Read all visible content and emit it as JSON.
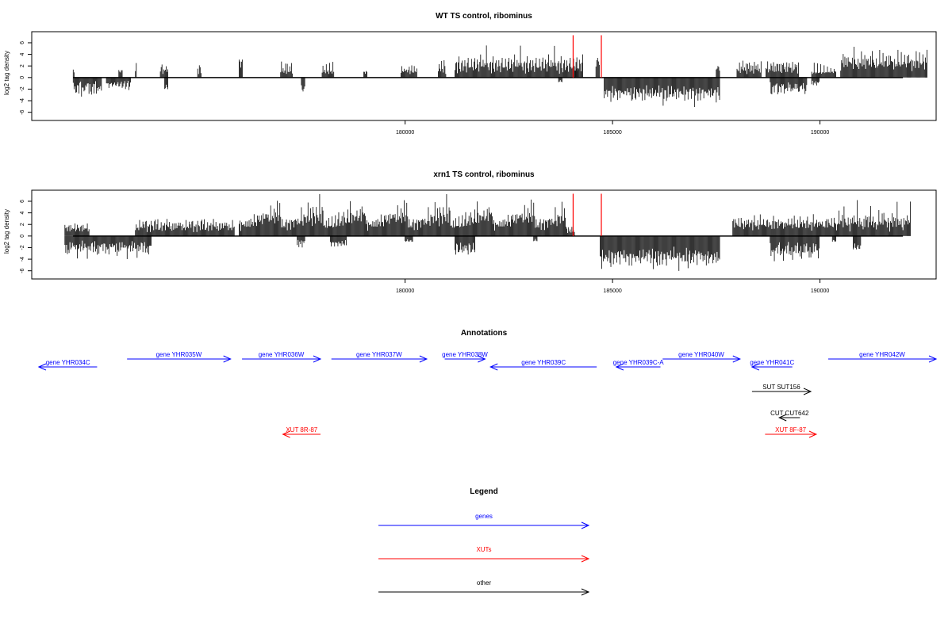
{
  "colors": {
    "axis": "#000000",
    "bars": "#000000",
    "highlight": "#ff0000",
    "genes": "#0000ff",
    "xuts": "#ff0000",
    "other": "#000000"
  },
  "chart_data": [
    {
      "type": "bar",
      "title": "WT TS control, ribominus",
      "ylabel": "log2 tag density",
      "xlim": [
        171000,
        192800
      ],
      "ylim": [
        -7,
        7.5
      ],
      "xticks": [
        180000,
        185000,
        190000
      ],
      "yticks": [
        -6,
        -4,
        -2,
        0,
        2,
        4,
        6
      ],
      "highlight_positions": [
        184050,
        184730
      ],
      "highlight_height": 7.3,
      "plus_strand": {
        "step": 20,
        "segments": [
          {
            "start": 172000,
            "end": 172050,
            "values": [
              1.5
            ]
          },
          {
            "start": 173100,
            "end": 173200,
            "values": [
              1.3
            ]
          },
          {
            "start": 173500,
            "end": 173550,
            "values": [
              1.3,
              2.5
            ]
          },
          {
            "start": 174100,
            "end": 174300,
            "values": [
              1.2,
              1.8,
              2.7,
              1.0,
              1.5
            ]
          },
          {
            "start": 175000,
            "end": 175100,
            "values": [
              1.8,
              1.0,
              2.3
            ]
          },
          {
            "start": 176000,
            "end": 176100,
            "values": [
              3.1
            ]
          },
          {
            "start": 177000,
            "end": 177300,
            "values": [
              1.2,
              2.8,
              1.1,
              2.6,
              1.0
            ]
          },
          {
            "start": 178000,
            "end": 178300,
            "values": [
              1.1,
              2.9,
              1.0,
              1.4
            ]
          },
          {
            "start": 179000,
            "end": 179100,
            "values": [
              1.0,
              1.2
            ]
          },
          {
            "start": 179900,
            "end": 180300,
            "values": [
              1.3,
              2.1,
              1.1
            ]
          },
          {
            "start": 180800,
            "end": 181000,
            "values": [
              1.1,
              3.0,
              2.2
            ]
          },
          {
            "start": 181200,
            "end": 184300,
            "values": [
              1.5,
              2.5,
              3.2,
              1.2,
              2.8,
              3.7,
              2.0,
              1.4,
              2.6,
              3.1,
              1.8,
              2.4,
              3.0,
              2.2,
              1.6,
              2.9,
              3.4,
              2.1,
              2.7,
              1.9,
              3.3,
              2.5,
              1.7,
              2.8,
              3.6,
              2.3,
              2.0,
              3.1,
              2.6,
              1.8,
              3.0,
              4.0,
              2.4,
              2.9,
              3.2,
              1.9,
              3.5,
              2.8,
              5.6,
              2.7,
              3.0
            ]
          },
          {
            "start": 184100,
            "end": 184200,
            "values": [
              1.6,
              1.8
            ]
          },
          {
            "start": 184600,
            "end": 184700,
            "values": [
              3.4
            ]
          },
          {
            "start": 187500,
            "end": 187600,
            "values": [
              2.0
            ]
          },
          {
            "start": 188000,
            "end": 188600,
            "values": [
              1.7,
              2.3,
              1.2,
              2.6,
              1.0,
              2.8,
              1.5,
              3.0
            ]
          },
          {
            "start": 188700,
            "end": 189500,
            "values": [
              2.5,
              1.8,
              2.8,
              1.0,
              2.7,
              1.4,
              2.4
            ]
          },
          {
            "start": 189800,
            "end": 190400,
            "values": [
              1.2,
              1.0,
              0.9,
              2.6
            ]
          },
          {
            "start": 190500,
            "end": 192600,
            "values": [
              2.0,
              3.5,
              2.5,
              4.8,
              3.0,
              3.9,
              2.2,
              4.4,
              2.7,
              3.6,
              2.9,
              4.0,
              3.2,
              2.4,
              3.8,
              2.6,
              6.1,
              3.1,
              2.8,
              3.5,
              2.0,
              3.3
            ]
          }
        ]
      },
      "minus_strand": {
        "step": 20,
        "segments": [
          {
            "start": 172000,
            "end": 172700,
            "values": [
              -1.0,
              -3.4,
              -1.8,
              -2.6,
              -3.0,
              -2.2,
              -1.5,
              -2.8,
              -1.2
            ]
          },
          {
            "start": 172800,
            "end": 173400,
            "values": [
              -1.6,
              -1.1,
              -1.0,
              -2.4
            ]
          },
          {
            "start": 174200,
            "end": 174300,
            "values": [
              -2.0
            ]
          },
          {
            "start": 177500,
            "end": 177600,
            "values": [
              -2.4
            ]
          },
          {
            "start": 183700,
            "end": 183800,
            "values": [
              -0.8
            ]
          },
          {
            "start": 184800,
            "end": 187600,
            "values": [
              -3.8,
              -2.4,
              -4.0,
              -2.9,
              -3.4,
              -2.5,
              -3.6,
              -2.8,
              -4.2,
              -3.0,
              -2.6,
              -3.9,
              -3.1,
              -2.4,
              -3.5,
              -2.7,
              -4.0,
              -3.2,
              -2.9,
              -3.6,
              -2.5,
              -4.3,
              -3.0,
              -2.8,
              -3.4,
              -3.9,
              -2.6,
              -3.1,
              -2.4,
              -3.7,
              -2.6,
              -3.2,
              -2.7,
              -5.1,
              -3.8,
              -3.1,
              -2.9,
              -4.1
            ]
          },
          {
            "start": 188800,
            "end": 189700,
            "values": [
              -1.2,
              -2.9,
              -3.0,
              -2.4,
              -1.8,
              -2.6,
              -1.5,
              -2.0
            ]
          },
          {
            "start": 189800,
            "end": 190000,
            "values": [
              -1.4,
              -0.9
            ]
          }
        ]
      }
    },
    {
      "type": "bar",
      "title": "xrn1 TS control, ribominus",
      "ylabel": "log2 tag density",
      "xlim": [
        171000,
        192800
      ],
      "ylim": [
        -7,
        7.5
      ],
      "xticks": [
        180000,
        185000,
        190000
      ],
      "yticks": [
        -6,
        -4,
        -2,
        0,
        2,
        4,
        6
      ],
      "highlight_positions": [
        184050,
        184730
      ],
      "highlight_height": 7.3,
      "plus_strand": {
        "step": 20,
        "segments": [
          {
            "start": 171800,
            "end": 172400,
            "values": [
              2.0,
              1.4,
              2.2,
              1.1,
              1.6
            ]
          },
          {
            "start": 173500,
            "end": 175900,
            "values": [
              1.2,
              2.0,
              1.6,
              2.4,
              1.1,
              2.8,
              1.9,
              2.3,
              1.4,
              2.6,
              3.0,
              1.8,
              2.5,
              2.9
            ]
          },
          {
            "start": 176000,
            "end": 183900,
            "values": [
              2.1,
              3.0,
              1.6,
              2.7,
              1.9,
              2.4,
              3.2,
              1.8,
              2.6,
              2.2,
              3.4,
              1.7,
              2.9,
              2.5,
              3.6,
              2.0,
              2.8,
              3.1,
              4.2,
              2.4,
              3.0,
              2.6,
              3.7,
              2.9,
              5.0,
              3.2,
              2.7,
              3.9,
              3.4,
              4.6,
              3.0,
              3.5,
              6.3,
              4.1,
              3.2,
              4.8,
              3.6,
              2.9,
              5.5,
              4.0,
              4.4,
              3.1,
              5.2,
              3.8,
              4.7,
              3.3,
              7.3,
              4.2,
              3.9,
              5.8,
              4.4
            ]
          },
          {
            "start": 183900,
            "end": 184100,
            "values": [
              1.6,
              0.8
            ]
          },
          {
            "start": 187900,
            "end": 190400,
            "values": [
              2.6,
              3.8,
              2.1,
              3.0,
              2.4,
              2.9,
              2.2,
              3.1,
              1.8,
              2.7,
              3.6,
              2.3,
              2.5,
              1.9,
              2.8,
              1.6
            ]
          },
          {
            "start": 190400,
            "end": 192200,
            "values": [
              1.2,
              3.1,
              2.3,
              4.5,
              2.8,
              3.6,
              2.6,
              3.9,
              2.4,
              6.2,
              3.0,
              2.7,
              3.4,
              2.0,
              3.2,
              2.5
            ]
          }
        ]
      },
      "minus_strand": {
        "step": 20,
        "segments": [
          {
            "start": 171800,
            "end": 173900,
            "values": [
              -1.6,
              -3.0,
              -2.2,
              -4.0,
              -2.4,
              -3.2,
              -1.8,
              -2.7,
              -2.0,
              -1.4,
              -2.8,
              -2.1
            ]
          },
          {
            "start": 177400,
            "end": 177600,
            "values": [
              -2.0,
              -1.0
            ]
          },
          {
            "start": 178200,
            "end": 178600,
            "values": [
              -1.3,
              -1.8
            ]
          },
          {
            "start": 180000,
            "end": 180200,
            "values": [
              -1.0
            ]
          },
          {
            "start": 181200,
            "end": 181700,
            "values": [
              -2.8,
              -3.2,
              -1.6,
              -2.4,
              -3.0
            ]
          },
          {
            "start": 183100,
            "end": 183200,
            "values": [
              -0.9
            ]
          },
          {
            "start": 184700,
            "end": 187600,
            "values": [
              -4.5,
              -3.6,
              -6.2,
              -4.0,
              -5.1,
              -3.8,
              -4.7,
              -5.4,
              -3.9,
              -4.4,
              -5.0,
              -3.5,
              -4.8,
              -5.6,
              -4.1,
              -3.7,
              -4.9,
              -4.3,
              -5.2,
              -3.8,
              -4.6,
              -3.4,
              -4.2,
              -3.9,
              -5.0,
              -3.6,
              -4.4,
              -3.3,
              -4.1,
              -3.8,
              -4.7
            ]
          },
          {
            "start": 188800,
            "end": 190000,
            "values": [
              -1.8,
              -3.6,
              -2.6,
              -4.0,
              -3.1,
              -4.4,
              -2.8,
              -3.5,
              -2.2,
              -3.0,
              -1.8
            ]
          },
          {
            "start": 190300,
            "end": 190400,
            "values": [
              -1.0
            ]
          },
          {
            "start": 190800,
            "end": 191000,
            "values": [
              -2.3
            ]
          }
        ]
      }
    }
  ],
  "annotations": {
    "title": "Annotations",
    "features": [
      {
        "label": "gene YHR034C",
        "kind": "genes",
        "strand": "-",
        "start": 171130,
        "end": 172200,
        "row": 1
      },
      {
        "label": "gene YHR035W",
        "kind": "genes",
        "strand": "+",
        "start": 172750,
        "end": 174650,
        "row": 0
      },
      {
        "label": "gene YHR036W",
        "kind": "genes",
        "strand": "+",
        "start": 174860,
        "end": 176300,
        "row": 0
      },
      {
        "label": "gene YHR037W",
        "kind": "genes",
        "strand": "+",
        "start": 176500,
        "end": 178250,
        "row": 0
      },
      {
        "label": "gene YHR038W",
        "kind": "genes",
        "strand": "+",
        "start": 178580,
        "end": 179320,
        "row": 0
      },
      {
        "label": "gene YHR039C",
        "kind": "genes",
        "strand": "-",
        "start": 179420,
        "end": 181370,
        "row": 1
      },
      {
        "label": "gene YHR039C-A",
        "kind": "genes",
        "strand": "-",
        "start": 181730,
        "end": 182540,
        "row": 1
      },
      {
        "label": "gene YHR040W",
        "kind": "genes",
        "strand": "+",
        "start": 182580,
        "end": 184000,
        "row": 0
      },
      {
        "label": "gene YHR041C",
        "kind": "genes",
        "strand": "-",
        "start": 184220,
        "end": 184960,
        "row": 1
      },
      {
        "label": "gene YHR042W",
        "kind": "genes",
        "strand": "+",
        "start": 185620,
        "end": 187600,
        "row": 0
      },
      {
        "label": "SUT SUT156",
        "kind": "other",
        "strand": "+",
        "start": 184220,
        "end": 185300,
        "row": 2
      },
      {
        "label": "CUT CUT642",
        "kind": "other",
        "strand": "-",
        "start": 184720,
        "end": 185100,
        "row": 3
      },
      {
        "label": "XUT 8R-87",
        "kind": "xuts",
        "strand": "-",
        "start": 175610,
        "end": 176300,
        "row": 4
      },
      {
        "label": "XUT 8F-87",
        "kind": "xuts",
        "strand": "+",
        "start": 184460,
        "end": 185400,
        "row": 4
      }
    ]
  },
  "legend": {
    "title": "Legend",
    "items": [
      {
        "label": "genes",
        "kind": "genes"
      },
      {
        "label": "XUTs",
        "kind": "xuts"
      },
      {
        "label": "other",
        "kind": "other"
      }
    ]
  }
}
